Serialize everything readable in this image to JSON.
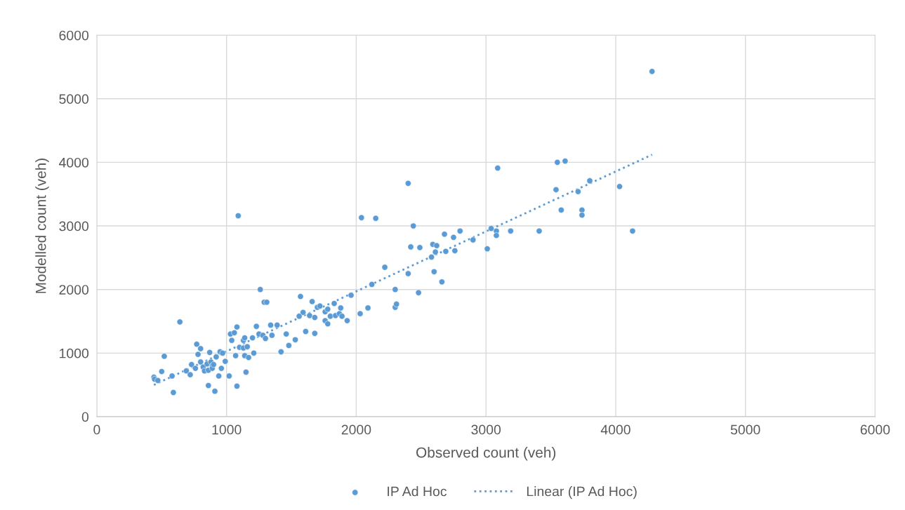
{
  "chart_data": {
    "type": "scatter",
    "xlabel": "Observed count (veh)",
    "ylabel": "Modelled count (veh)",
    "xlim": [
      0,
      6000
    ],
    "xticks": [
      0,
      1000,
      2000,
      3000,
      4000,
      5000,
      6000
    ],
    "ylim": [
      0,
      6000
    ],
    "yticks": [
      0,
      1000,
      2000,
      3000,
      4000,
      5000,
      6000
    ],
    "grid": true,
    "legend": "bottom",
    "series": [
      {
        "name": "IP Ad Hoc",
        "marker": "circle",
        "color": "#5b9bd5",
        "x": [
          440,
          445,
          470,
          500,
          520,
          580,
          590,
          640,
          690,
          720,
          730,
          760,
          770,
          780,
          800,
          800,
          820,
          830,
          850,
          860,
          860,
          870,
          880,
          890,
          890,
          900,
          910,
          920,
          940,
          950,
          960,
          970,
          990,
          1020,
          1030,
          1040,
          1060,
          1070,
          1080,
          1080,
          1090,
          1100,
          1130,
          1130,
          1140,
          1140,
          1150,
          1160,
          1170,
          1200,
          1210,
          1230,
          1250,
          1260,
          1280,
          1290,
          1310,
          1300,
          1340,
          1350,
          1390,
          1420,
          1460,
          1480,
          1530,
          1560,
          1570,
          1590,
          1610,
          1640,
          1660,
          1680,
          1680,
          1700,
          1720,
          1760,
          1760,
          1780,
          1780,
          1800,
          1830,
          1840,
          1870,
          1880,
          1890,
          1930,
          1960,
          2030,
          2040,
          2090,
          2120,
          2150,
          2220,
          2300,
          2300,
          2310,
          2400,
          2400,
          2420,
          2440,
          2480,
          2490,
          2580,
          2590,
          2600,
          2610,
          2620,
          2660,
          2680,
          2690,
          2750,
          2760,
          2800,
          2900,
          3010,
          3040,
          3080,
          3080,
          3090,
          3190,
          3410,
          3540,
          3550,
          3580,
          3610,
          3710,
          3740,
          3740,
          3800,
          4030,
          4130,
          4280
        ],
        "values": [
          620,
          590,
          570,
          710,
          950,
          640,
          380,
          1490,
          720,
          660,
          820,
          760,
          1140,
          980,
          860,
          1070,
          780,
          720,
          830,
          490,
          730,
          1010,
          860,
          800,
          760,
          820,
          400,
          940,
          640,
          1020,
          760,
          1000,
          870,
          640,
          1300,
          1200,
          1320,
          960,
          1410,
          480,
          3160,
          1090,
          1200,
          1080,
          1240,
          960,
          700,
          1100,
          930,
          1240,
          1000,
          1420,
          1300,
          2000,
          1280,
          1800,
          1800,
          1230,
          1440,
          1280,
          1440,
          1020,
          1300,
          1120,
          1210,
          1580,
          1890,
          1640,
          1340,
          1590,
          1810,
          1560,
          1310,
          1720,
          1740,
          1650,
          1510,
          1690,
          1460,
          1580,
          1780,
          1590,
          1620,
          1710,
          1580,
          1510,
          1910,
          1620,
          3130,
          1710,
          2080,
          3120,
          2350,
          2000,
          1720,
          1770,
          3670,
          2250,
          2670,
          3000,
          1950,
          2660,
          2510,
          2710,
          2280,
          2590,
          2690,
          2120,
          2870,
          2600,
          2820,
          2610,
          2920,
          2780,
          2640,
          2960,
          2920,
          2850,
          3910,
          2920,
          2920,
          3570,
          4000,
          3250,
          4020,
          3540,
          3250,
          3170,
          3710,
          3620,
          2920,
          5430
        ]
      },
      {
        "name": "Linear (IP Ad Hoc)",
        "type": "line",
        "line_style": "dotted",
        "marker": "none",
        "color": "#5b9bd5",
        "x": [
          440,
          4280
        ],
        "values": [
          500,
          4120
        ]
      }
    ]
  }
}
